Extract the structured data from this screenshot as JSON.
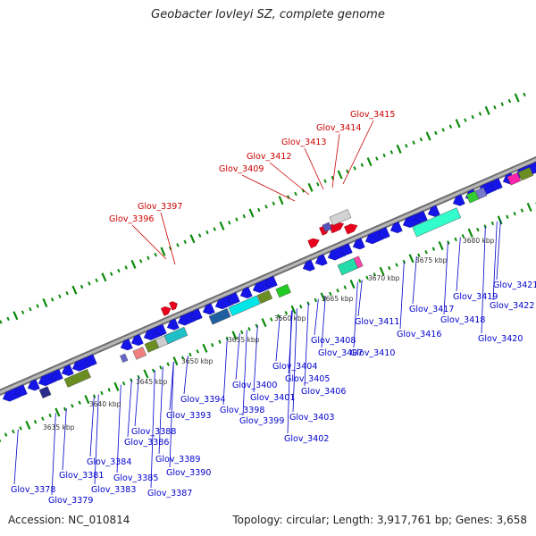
{
  "title": "Geobacter lovleyi SZ, complete genome",
  "footer": {
    "accession": "Accession: NC_010814",
    "summary": "Topology: circular; Length: 3,917,761 bp; Genes: 3,658"
  },
  "colors": {
    "label_upper": "#cc0000",
    "label_lower": "#0000cc",
    "gene_forward": "#e8001c",
    "gene_reverse": "#1010ee",
    "backbone": "#8c8c8c",
    "ticks": "#0a8a0a"
  },
  "scale_labels": [
    "3635 kbp",
    "3640 kbp",
    "3645 kbp",
    "3650 kbp",
    "3655 kbp",
    "3660 kbp",
    "3665 kbp",
    "3670 kbp",
    "3675 kbp",
    "3680 kbp"
  ],
  "upper_labels": [
    "Glov_3396",
    "Glov_3397",
    "Glov_3409",
    "Glov_3412",
    "Glov_3413",
    "Glov_3414",
    "Glov_3415"
  ],
  "lower_labels": [
    "Glov_3378",
    "Glov_3379",
    "Glov_3381",
    "Glov_3383",
    "Glov_3384",
    "Glov_3385",
    "Glov_3386",
    "Glov_3387",
    "Glov_3388",
    "Glov_3389",
    "Glov_3390",
    "Glov_3393",
    "Glov_3394",
    "Glov_3398",
    "Glov_3399",
    "Glov_3400",
    "Glov_3401",
    "Glov_3402",
    "Glov_3403",
    "Glov_3404",
    "Glov_3405",
    "Glov_3406",
    "Glov_3407",
    "Glov_3408",
    "Glov_3410",
    "Glov_3411",
    "Glov_3416",
    "Glov_3417",
    "Glov_3418",
    "Glov_3419",
    "Glov_3420",
    "Glov_3421",
    "Glov_3422"
  ]
}
